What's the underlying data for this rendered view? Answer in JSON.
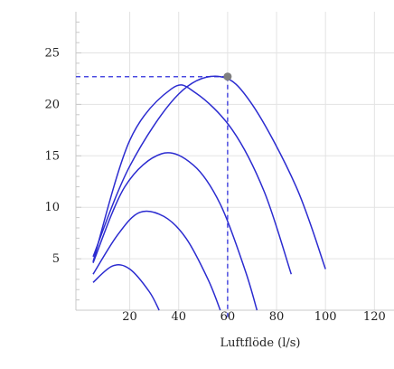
{
  "chart_data": {
    "type": "line",
    "title": "",
    "xlabel": "Luftflöde (l/s)",
    "ylabel": "",
    "xlim": [
      -2,
      128
    ],
    "ylim": [
      0,
      29
    ],
    "x_ticks": [
      20,
      40,
      60,
      80,
      100,
      120
    ],
    "y_ticks": [
      5,
      10,
      15,
      20,
      25
    ],
    "grid": true,
    "legend": "none",
    "colors": {
      "curve": "#2b2bd0",
      "guide": "#4a4ae0",
      "marker": "#808080",
      "grid": "#e3e3e3"
    },
    "series": [
      {
        "points": [
          [
            5,
            4.7
          ],
          [
            20,
            16.5
          ],
          [
            37,
            21.5
          ],
          [
            47,
            21.1
          ],
          [
            62,
            17.5
          ],
          [
            75,
            11.5
          ],
          [
            86,
            3.5
          ]
        ]
      },
      {
        "points": [
          [
            5,
            5.2
          ],
          [
            20,
            14.0
          ],
          [
            40,
            21.0
          ],
          [
            57,
            22.7
          ],
          [
            70,
            20.0
          ],
          [
            88,
            12.0
          ],
          [
            100,
            4.0
          ]
        ]
      },
      {
        "points": [
          [
            5,
            4.6
          ],
          [
            18,
            12.0
          ],
          [
            33,
            15.2
          ],
          [
            46,
            14.1
          ],
          [
            57,
            10.3
          ],
          [
            67,
            4.0
          ],
          [
            72,
            0.0
          ]
        ]
      },
      {
        "points": [
          [
            5,
            3.5
          ],
          [
            15,
            7.3
          ],
          [
            24,
            9.5
          ],
          [
            34,
            9.1
          ],
          [
            43,
            7.0
          ],
          [
            52,
            3.0
          ],
          [
            57,
            0.0
          ]
        ]
      },
      {
        "points": [
          [
            5,
            2.7
          ],
          [
            13,
            4.3
          ],
          [
            20,
            4.0
          ],
          [
            28,
            1.8
          ],
          [
            32,
            0.0
          ]
        ]
      }
    ],
    "marker": {
      "x": 60,
      "y": 22.7
    }
  }
}
